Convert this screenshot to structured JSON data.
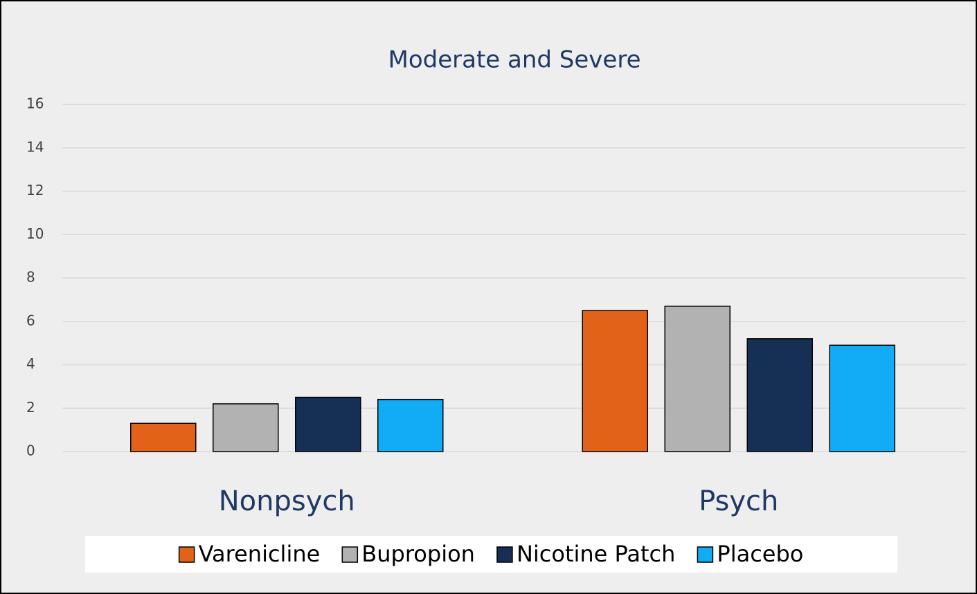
{
  "chart_data": {
    "type": "bar",
    "title": "Moderate and Severe",
    "categories": [
      "Nonpsych",
      "Psych"
    ],
    "series": [
      {
        "name": "Varenicline",
        "color": "#e2621a",
        "values": [
          1.3,
          6.5
        ]
      },
      {
        "name": "Bupropion",
        "color": "#b2b2b2",
        "values": [
          2.2,
          6.7
        ]
      },
      {
        "name": "Nicotine Patch",
        "color": "#162f55",
        "values": [
          2.5,
          5.2
        ]
      },
      {
        "name": "Placebo",
        "color": "#12abf5",
        "values": [
          2.4,
          4.9
        ]
      }
    ],
    "ylim": [
      0,
      16
    ],
    "yticks": [
      0,
      2,
      4,
      6,
      8,
      10,
      12,
      14,
      16
    ],
    "grid": true,
    "legend": "bottom"
  }
}
